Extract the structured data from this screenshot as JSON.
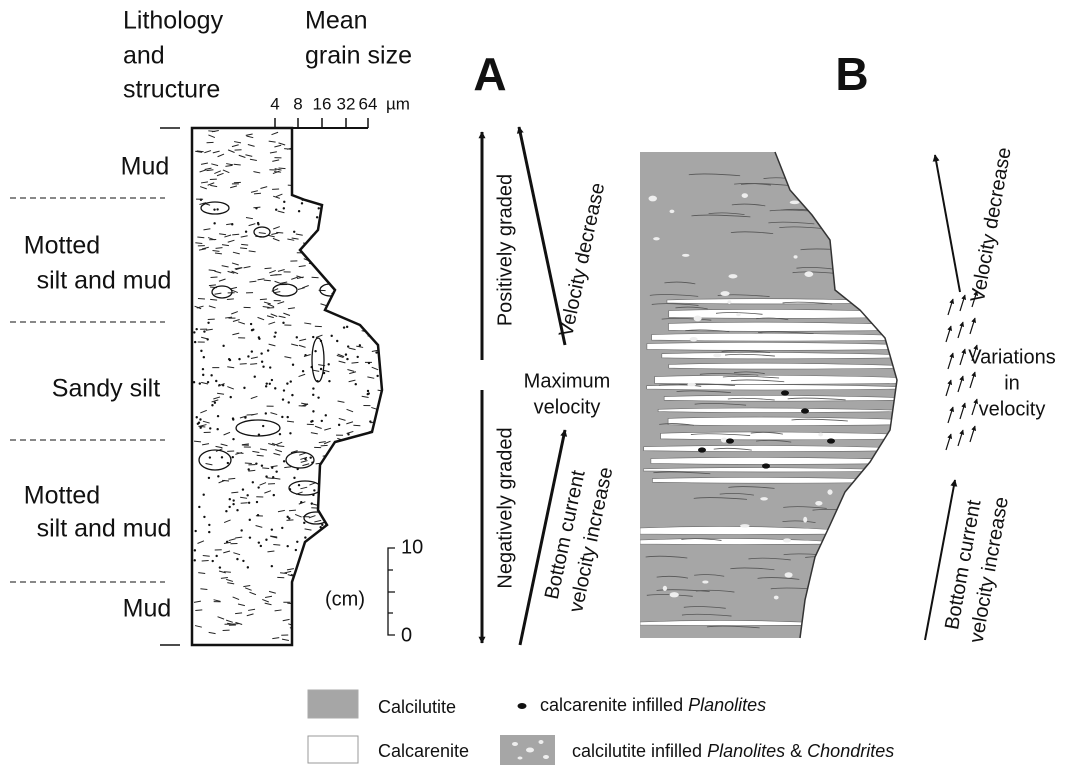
{
  "header": {
    "lithology": [
      "Lithology",
      "and",
      "structure"
    ],
    "grain_size": [
      "Mean",
      "grain size"
    ],
    "grain_ticks": [
      4,
      8,
      16,
      32,
      64
    ],
    "grain_unit": "µm"
  },
  "units": [
    {
      "label": [
        "Mud"
      ]
    },
    {
      "label": [
        "Motted",
        "silt and mud"
      ]
    },
    {
      "label": [
        "Sandy silt"
      ]
    },
    {
      "label": [
        "Motted",
        "silt and mud"
      ]
    },
    {
      "label": [
        "Mud"
      ]
    }
  ],
  "scale": {
    "top": 10,
    "unit": "(cm)",
    "bottom": 0
  },
  "panel_a": {
    "label": "A",
    "positively": "Positively graded",
    "negatively": "Negatively graded",
    "decrease": "Velocity decrease",
    "maximum": [
      "Maximum",
      "velocity"
    ],
    "increase": [
      "Bottom current",
      "velocity increase"
    ]
  },
  "panel_b": {
    "label": "B",
    "decrease": "Velocity decrease",
    "variations": [
      "Variations",
      "in",
      "velocity"
    ],
    "increase": [
      "Bottom current",
      "velocity increase"
    ]
  },
  "legend": [
    {
      "text": "Calcilutite"
    },
    {
      "text": "Calcarenite"
    },
    {
      "parts": [
        "calcarenite infilled",
        "Planolites"
      ]
    },
    {
      "parts": [
        "calcilutite infilled",
        "Planolites",
        "&",
        "Chondrites"
      ]
    }
  ]
}
